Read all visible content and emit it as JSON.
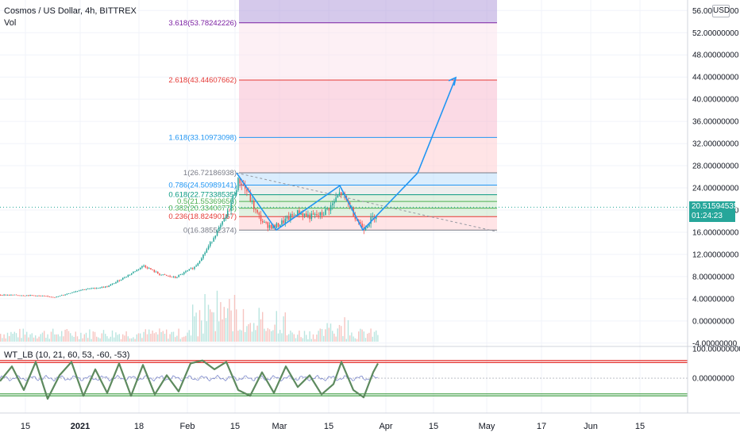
{
  "header": {
    "title": "Cosmos / US Dollar, 4h, BITTREX",
    "volume_label": "Vol",
    "currency": "USD"
  },
  "price_panel": {
    "current_price": "20.51594535",
    "countdown": "01:24:23",
    "price_tag_color": "#26a69a"
  },
  "oscillator": {
    "label": "WT_LB (10, 21, 60, 53, -60, -53)"
  },
  "chart_data": [
    {
      "type": "line",
      "panel": "price",
      "title": "Cosmos / US Dollar, 4h, BITTREX",
      "x_ticks": [
        "15",
        "2021",
        "18",
        "Feb",
        "15",
        "Mar",
        "15",
        "Apr",
        "15",
        "May",
        "17",
        "Jun",
        "15"
      ],
      "y_ticks": [
        "-4.00000000",
        "0.00000000",
        "4.00000000",
        "8.00000000",
        "12.00000000",
        "16.00000000",
        "20.00000000",
        "24.00000000",
        "28.00000000",
        "32.00000000",
        "36.00000000",
        "40.00000000",
        "44.00000000",
        "48.00000000",
        "52.00000000",
        "56.00000000"
      ],
      "ylim": [
        -4.6,
        57.9
      ],
      "price_path": [
        {
          "x": 0,
          "y": 4.7
        },
        {
          "x": 40,
          "y": 4.6
        },
        {
          "x": 70,
          "y": 4.3
        },
        {
          "x": 100,
          "y": 5.6
        },
        {
          "x": 135,
          "y": 6.2
        },
        {
          "x": 165,
          "y": 8.6
        },
        {
          "x": 180,
          "y": 10.0
        },
        {
          "x": 200,
          "y": 8.4
        },
        {
          "x": 220,
          "y": 7.8
        },
        {
          "x": 245,
          "y": 9.8
        },
        {
          "x": 258,
          "y": 12.5
        },
        {
          "x": 270,
          "y": 15.5
        },
        {
          "x": 285,
          "y": 19.0
        },
        {
          "x": 300,
          "y": 25.5
        },
        {
          "x": 310,
          "y": 23.5
        },
        {
          "x": 322,
          "y": 19.5
        },
        {
          "x": 332,
          "y": 17.5
        },
        {
          "x": 345,
          "y": 16.9
        },
        {
          "x": 360,
          "y": 18.3
        },
        {
          "x": 375,
          "y": 19.6
        },
        {
          "x": 390,
          "y": 18.8
        },
        {
          "x": 405,
          "y": 19.2
        },
        {
          "x": 418,
          "y": 21.0
        },
        {
          "x": 428,
          "y": 23.2
        },
        {
          "x": 438,
          "y": 21.2
        },
        {
          "x": 448,
          "y": 18.5
        },
        {
          "x": 457,
          "y": 16.7
        },
        {
          "x": 465,
          "y": 18.0
        },
        {
          "x": 475,
          "y": 19.6
        }
      ],
      "fib_levels": [
        {
          "label": "3.618(53.78242226)",
          "value": 53.78242226,
          "color": "#7b1fa2"
        },
        {
          "label": "2.618(43.44607662)",
          "value": 43.44607662,
          "color": "#e53935"
        },
        {
          "label": "1.618(33.10973098)",
          "value": 33.10973098,
          "color": "#2196f3"
        },
        {
          "label": "1(26.72186938)",
          "value": 26.72186938,
          "color": "#787b86"
        },
        {
          "label": "0.786(24.50989141)",
          "value": 24.50989141,
          "color": "#2196f3"
        },
        {
          "label": "0.618(22.77338535)",
          "value": 22.77338535,
          "color": "#089981"
        },
        {
          "label": "0.5(21.55369656)",
          "value": 21.55369656,
          "color": "#4caf50"
        },
        {
          "label": "0.382(20.33400778)",
          "value": 20.33400778,
          "color": "#4caf50"
        },
        {
          "label": "0.236(18.82490167)",
          "value": 18.82490167,
          "color": "#e53935"
        },
        {
          "label": "0(16.38552374)",
          "value": 16.38552374,
          "color": "#787b86"
        }
      ],
      "fib_zone_colors": [
        "#b39ddb",
        "#fce4ec",
        "#f8bbd0",
        "#ffcdd2",
        "#bbdefb",
        "#e0e0e0",
        "#c8e6c9",
        "#c8e6c9",
        "#c8e6c9",
        "#ffcdd2",
        "#ffcdd2"
      ],
      "projection_path": [
        {
          "x": 298,
          "y": 26.7
        },
        {
          "x": 348,
          "y": 16.4
        },
        {
          "x": 428,
          "y": 24.4
        },
        {
          "x": 457,
          "y": 16.4
        },
        {
          "x": 526,
          "y": 26.7
        },
        {
          "x": 574,
          "y": 43.9
        }
      ],
      "trendline": [
        {
          "x": 298,
          "y": 26.7
        },
        {
          "x": 626,
          "y": 16.1
        }
      ],
      "volume": {
        "note": "volume bars along bottom of price panel",
        "max_fraction": 0.18
      },
      "grid": true
    },
    {
      "type": "line",
      "panel": "oscillator",
      "title": "WT_LB (10, 21, 60, 53, -60, -53)",
      "y_ticks": [
        "100.00000000",
        "0.00000000"
      ],
      "ylim": [
        -118,
        105
      ],
      "levels": [
        {
          "value": 60,
          "color": "#e53935"
        },
        {
          "value": 53,
          "color": "#e53935"
        },
        {
          "value": -53,
          "color": "#43a047"
        },
        {
          "value": -60,
          "color": "#43a047"
        }
      ],
      "wt1": [
        {
          "x": 0,
          "y": -10
        },
        {
          "x": 15,
          "y": 40
        },
        {
          "x": 30,
          "y": -40
        },
        {
          "x": 45,
          "y": 55
        },
        {
          "x": 60,
          "y": -70
        },
        {
          "x": 75,
          "y": 10
        },
        {
          "x": 90,
          "y": 55
        },
        {
          "x": 105,
          "y": -60
        },
        {
          "x": 120,
          "y": 30
        },
        {
          "x": 135,
          "y": -50
        },
        {
          "x": 150,
          "y": 50
        },
        {
          "x": 165,
          "y": -60
        },
        {
          "x": 180,
          "y": 45
        },
        {
          "x": 195,
          "y": -55
        },
        {
          "x": 210,
          "y": 10
        },
        {
          "x": 225,
          "y": -45
        },
        {
          "x": 240,
          "y": 50
        },
        {
          "x": 255,
          "y": 60
        },
        {
          "x": 270,
          "y": 30
        },
        {
          "x": 285,
          "y": 55
        },
        {
          "x": 300,
          "y": -40
        },
        {
          "x": 315,
          "y": -60
        },
        {
          "x": 330,
          "y": 20
        },
        {
          "x": 345,
          "y": -50
        },
        {
          "x": 360,
          "y": 40
        },
        {
          "x": 375,
          "y": -30
        },
        {
          "x": 390,
          "y": 10
        },
        {
          "x": 405,
          "y": -55
        },
        {
          "x": 420,
          "y": -20
        },
        {
          "x": 430,
          "y": 55
        },
        {
          "x": 445,
          "y": -40
        },
        {
          "x": 458,
          "y": -65
        },
        {
          "x": 470,
          "y": 20
        },
        {
          "x": 476,
          "y": 50
        }
      ],
      "wt_diff_color": "#5c6bc0",
      "grid": true
    }
  ]
}
